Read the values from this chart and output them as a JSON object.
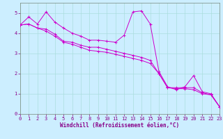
{
  "xlabel": "Windchill (Refroidissement éolien,°C)",
  "background_color": "#cceeff",
  "grid_color": "#aadddd",
  "line_color": "#cc00cc",
  "xlim": [
    0,
    23
  ],
  "ylim": [
    0,
    5.5
  ],
  "xticks": [
    0,
    1,
    2,
    3,
    4,
    5,
    6,
    7,
    8,
    9,
    10,
    11,
    12,
    13,
    14,
    15,
    16,
    17,
    18,
    19,
    20,
    21,
    22,
    23
  ],
  "yticks": [
    0,
    1,
    2,
    3,
    4,
    5
  ],
  "series1": [
    [
      0,
      4.4
    ],
    [
      1,
      4.8
    ],
    [
      2,
      4.45
    ],
    [
      3,
      5.05
    ],
    [
      4,
      4.55
    ],
    [
      5,
      4.25
    ],
    [
      6,
      4.0
    ],
    [
      7,
      3.85
    ],
    [
      8,
      3.65
    ],
    [
      9,
      3.65
    ],
    [
      10,
      3.6
    ],
    [
      11,
      3.55
    ],
    [
      12,
      3.9
    ],
    [
      13,
      5.05
    ],
    [
      14,
      5.1
    ],
    [
      15,
      4.45
    ],
    [
      16,
      2.1
    ],
    [
      17,
      1.35
    ],
    [
      18,
      1.2
    ],
    [
      19,
      1.35
    ],
    [
      20,
      1.9
    ],
    [
      21,
      1.1
    ],
    [
      22,
      1.0
    ],
    [
      23,
      0.35
    ]
  ],
  "series2": [
    [
      0,
      4.4
    ],
    [
      1,
      4.45
    ],
    [
      2,
      4.25
    ],
    [
      3,
      4.2
    ],
    [
      4,
      3.95
    ],
    [
      5,
      3.6
    ],
    [
      6,
      3.55
    ],
    [
      7,
      3.4
    ],
    [
      8,
      3.3
    ],
    [
      9,
      3.3
    ],
    [
      10,
      3.2
    ],
    [
      11,
      3.1
    ],
    [
      12,
      3.0
    ],
    [
      13,
      2.9
    ],
    [
      14,
      2.8
    ],
    [
      15,
      2.65
    ],
    [
      16,
      2.0
    ],
    [
      17,
      1.3
    ],
    [
      18,
      1.3
    ],
    [
      19,
      1.3
    ],
    [
      20,
      1.3
    ],
    [
      21,
      1.05
    ],
    [
      22,
      0.95
    ],
    [
      23,
      0.35
    ]
  ],
  "series3": [
    [
      0,
      4.4
    ],
    [
      1,
      4.45
    ],
    [
      2,
      4.25
    ],
    [
      3,
      4.1
    ],
    [
      4,
      3.85
    ],
    [
      5,
      3.55
    ],
    [
      6,
      3.45
    ],
    [
      7,
      3.3
    ],
    [
      8,
      3.15
    ],
    [
      9,
      3.1
    ],
    [
      10,
      3.05
    ],
    [
      11,
      2.95
    ],
    [
      12,
      2.85
    ],
    [
      13,
      2.75
    ],
    [
      14,
      2.65
    ],
    [
      15,
      2.5
    ],
    [
      16,
      2.0
    ],
    [
      17,
      1.3
    ],
    [
      18,
      1.25
    ],
    [
      19,
      1.25
    ],
    [
      20,
      1.2
    ],
    [
      21,
      1.0
    ],
    [
      22,
      0.95
    ],
    [
      23,
      0.35
    ]
  ],
  "tick_fontsize": 5,
  "xlabel_fontsize": 5.5,
  "tick_color": "#880088",
  "xlabel_color": "#880088"
}
